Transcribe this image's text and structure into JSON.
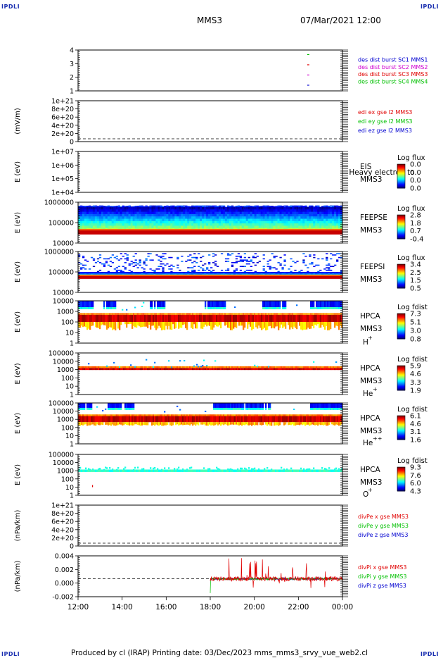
{
  "corners": {
    "tl": "IPDLI",
    "tr": "IPDLI",
    "bl": "IPDLI",
    "br": "IPDLI"
  },
  "header": {
    "spacecraft": "MMS3",
    "datetime": "07/Mar/2021 12:00"
  },
  "footer": {
    "text": "Produced by cl (IRAP)   Printing date: 03/Dec/2023   mms_mms3_srvy_vue_web2.cl"
  },
  "colors": {
    "red": "#e00000",
    "magenta": "#d000d0",
    "blue": "#0000d0",
    "green": "#00c000"
  },
  "chart_data": [
    {
      "type": "line",
      "id": "burst",
      "yticks": [
        "4",
        "3",
        "2",
        "1"
      ],
      "legend": [
        {
          "label": "des dist burst SC1 MMS1",
          "color": "blue"
        },
        {
          "label": "des dist burst SC2 MMS2",
          "color": "magenta"
        },
        {
          "label": "des dist burst SC3 MMS3",
          "color": "red"
        },
        {
          "label": "des dist burst SC4 MMS4",
          "color": "green"
        }
      ],
      "series": [
        {
          "y": 4,
          "x_hours": 10.4
        },
        {
          "y": 3,
          "x_hours": 10.4
        },
        {
          "y": 2,
          "x_hours": 10.4
        },
        {
          "y": 1,
          "x_hours": 10.4
        }
      ]
    },
    {
      "type": "line",
      "id": "edi",
      "ylabel": "(mV/m)",
      "yticks": [
        "1e+21",
        "8e+20",
        "6e+20",
        "4e+20",
        "2e+20",
        "0"
      ],
      "legend": [
        {
          "label": "edi ex gse l2 MMS3",
          "color": "red"
        },
        {
          "label": "edi ey gse l2 MMS3",
          "color": "green"
        },
        {
          "label": "edi ez gse l2 MMS3",
          "color": "blue"
        }
      ]
    },
    {
      "type": "heatmap",
      "id": "eis",
      "ylabel": "E (eV)",
      "yticks": [
        "1e+07",
        "1e+06",
        "1e+05",
        "1e+04"
      ],
      "instrument": "EIS",
      "overlay": "Heavy electron to",
      "sc": "MMS3",
      "cbar_title": "Log flux",
      "cbar_ticks": [
        "0.0",
        "0.0",
        "0.0",
        "0.0"
      ]
    },
    {
      "type": "heatmap",
      "id": "feepse",
      "ylabel": "E (eV)",
      "yticks": [
        "1000000",
        "100000",
        "10000"
      ],
      "instrument": "FEEPSE",
      "sc": "MMS3",
      "cbar_title": "Log flux",
      "cbar_ticks": [
        "2.8",
        "1.8",
        "0.7",
        "-0.4"
      ]
    },
    {
      "type": "heatmap",
      "id": "feepsi",
      "ylabel": "E (eV)",
      "yticks": [
        "1000000",
        "100000",
        "10000"
      ],
      "instrument": "FEEPSI",
      "sc": "MMS3",
      "cbar_title": "Log flux",
      "cbar_ticks": [
        "3.4",
        "2.5",
        "1.5",
        "0.5"
      ]
    },
    {
      "type": "heatmap",
      "id": "hpca_h",
      "ylabel": "E (eV)",
      "yticks": [
        "10000",
        "1000",
        "100",
        "10",
        "1"
      ],
      "instrument": "HPCA",
      "sc": "MMS3",
      "species": "H",
      "charge": "+",
      "cbar_title": "Log fdist",
      "cbar_ticks": [
        "7.3",
        "5.1",
        "3.0",
        "0.8"
      ]
    },
    {
      "type": "heatmap",
      "id": "hpca_he",
      "ylabel": "E (eV)",
      "yticks": [
        "100000",
        "10000",
        "1000",
        "100",
        "10",
        "1"
      ],
      "instrument": "HPCA",
      "sc": "MMS3",
      "species": "He",
      "charge": "+",
      "cbar_title": "Log fdist",
      "cbar_ticks": [
        "5.9",
        "4.6",
        "3.3",
        "1.9"
      ]
    },
    {
      "type": "heatmap",
      "id": "hpca_hepp",
      "ylabel": "E (eV)",
      "yticks": [
        "100000",
        "10000",
        "1000",
        "100",
        "10",
        "1"
      ],
      "instrument": "HPCA",
      "sc": "MMS3",
      "species": "He",
      "charge": "++",
      "cbar_title": "Log fdist",
      "cbar_ticks": [
        "6.1",
        "4.6",
        "3.1",
        "1.6"
      ]
    },
    {
      "type": "heatmap",
      "id": "hpca_o",
      "ylabel": "E (eV)",
      "yticks": [
        "100000",
        "10000",
        "1000",
        "100",
        "10",
        "1"
      ],
      "instrument": "HPCA",
      "sc": "MMS3",
      "species": "O",
      "charge": "+",
      "cbar_title": "Log fdist",
      "cbar_ticks": [
        "9.3",
        "7.6",
        "6.0",
        "4.3"
      ]
    },
    {
      "type": "line",
      "id": "divpe",
      "ylabel": "(nPa/km)",
      "yticks": [
        "1e+21",
        "8e+20",
        "6e+20",
        "4e+20",
        "2e+20",
        "0"
      ],
      "legend": [
        {
          "label": "divPe x gse MMS3",
          "color": "red"
        },
        {
          "label": "divPe y gse MMS3",
          "color": "green"
        },
        {
          "label": "divPe z gse MMS3",
          "color": "blue"
        }
      ]
    },
    {
      "type": "line",
      "id": "divpi",
      "ylabel": "(nPa/km)",
      "yticks": [
        "0.004",
        "0.002",
        "0.000",
        "-0.002"
      ],
      "legend": [
        {
          "label": "divPi x gse MMS3",
          "color": "red"
        },
        {
          "label": "divPi y gse MMS3",
          "color": "green"
        },
        {
          "label": "divPi z gse MMS3",
          "color": "blue"
        }
      ]
    }
  ],
  "xaxis": {
    "ticks": [
      "12:00",
      "14:00",
      "16:00",
      "18:00",
      "20:00",
      "22:00",
      "00:00"
    ]
  }
}
